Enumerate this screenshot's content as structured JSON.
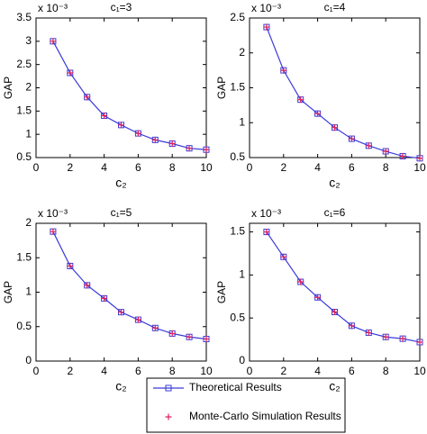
{
  "chart_data": [
    {
      "type": "line",
      "title": "c₁=3",
      "ylabel": "GAP",
      "xlabel": "c₂",
      "y_multiplier": "x 10⁻³",
      "x": [
        1,
        2,
        3,
        4,
        5,
        6,
        7,
        8,
        9,
        10
      ],
      "xlim": [
        0,
        10
      ],
      "xticks": [
        0,
        2,
        4,
        6,
        8,
        10
      ],
      "ylim": [
        0.5,
        3.5
      ],
      "yticks": [
        0.5,
        1,
        1.5,
        2,
        2.5,
        3,
        3.5
      ],
      "series": [
        {
          "name": "Theoretical Results",
          "color": "#3b3bd9",
          "marker": "square",
          "linestyle": "solid",
          "values": [
            3.0,
            2.32,
            1.8,
            1.4,
            1.2,
            1.02,
            0.88,
            0.8,
            0.7,
            0.67
          ]
        },
        {
          "name": "Monte-Carlo Simulation Results",
          "color": "#e0205a",
          "marker": "plus",
          "linestyle": "none",
          "values": [
            3.0,
            2.32,
            1.8,
            1.4,
            1.2,
            1.02,
            0.88,
            0.8,
            0.7,
            0.67
          ]
        }
      ]
    },
    {
      "type": "line",
      "title": "c₁=4",
      "ylabel": "GAP",
      "xlabel": "c₂",
      "y_multiplier": "x 10⁻³",
      "x": [
        1,
        2,
        3,
        4,
        5,
        6,
        7,
        8,
        9,
        10
      ],
      "xlim": [
        0,
        10
      ],
      "xticks": [
        0,
        2,
        4,
        6,
        8,
        10
      ],
      "ylim": [
        0.5,
        2.5
      ],
      "yticks": [
        0.5,
        1,
        1.5,
        2,
        2.5
      ],
      "series": [
        {
          "color": "#3b3bd9",
          "marker": "square",
          "linestyle": "solid",
          "values": [
            2.37,
            1.75,
            1.33,
            1.13,
            0.93,
            0.77,
            0.67,
            0.59,
            0.52,
            0.49
          ]
        },
        {
          "color": "#e0205a",
          "marker": "plus",
          "linestyle": "none",
          "values": [
            2.37,
            1.75,
            1.33,
            1.13,
            0.93,
            0.77,
            0.67,
            0.59,
            0.52,
            0.49
          ]
        }
      ]
    },
    {
      "type": "line",
      "title": "c₁=5",
      "ylabel": "GAP",
      "xlabel": "c₂",
      "y_multiplier": "x 10⁻³",
      "x": [
        1,
        2,
        3,
        4,
        5,
        6,
        7,
        8,
        9,
        10
      ],
      "xlim": [
        0,
        10
      ],
      "xticks": [
        0,
        2,
        4,
        6,
        8,
        10
      ],
      "ylim": [
        0,
        2
      ],
      "yticks": [
        0,
        0.5,
        1,
        1.5,
        2
      ],
      "series": [
        {
          "color": "#3b3bd9",
          "marker": "square",
          "linestyle": "solid",
          "values": [
            1.88,
            1.38,
            1.1,
            0.91,
            0.71,
            0.6,
            0.48,
            0.4,
            0.35,
            0.32
          ]
        },
        {
          "color": "#e0205a",
          "marker": "plus",
          "linestyle": "none",
          "values": [
            1.88,
            1.38,
            1.1,
            0.91,
            0.71,
            0.6,
            0.48,
            0.4,
            0.35,
            0.32
          ]
        }
      ]
    },
    {
      "type": "line",
      "title": "c₁=6",
      "ylabel": "GAP",
      "xlabel": "c₂",
      "y_multiplier": "x 10⁻³",
      "x": [
        1,
        2,
        3,
        4,
        5,
        6,
        7,
        8,
        9,
        10
      ],
      "xlim": [
        0,
        10
      ],
      "xticks": [
        0,
        2,
        4,
        6,
        8,
        10
      ],
      "ylim": [
        0,
        1.6
      ],
      "yticks": [
        0,
        0.5,
        1,
        1.5
      ],
      "series": [
        {
          "color": "#3b3bd9",
          "marker": "square",
          "linestyle": "solid",
          "values": [
            1.5,
            1.21,
            0.92,
            0.74,
            0.57,
            0.41,
            0.33,
            0.28,
            0.26,
            0.22
          ]
        },
        {
          "color": "#e0205a",
          "marker": "plus",
          "linestyle": "none",
          "values": [
            1.5,
            1.21,
            0.92,
            0.74,
            0.57,
            0.41,
            0.33,
            0.28,
            0.26,
            0.22
          ]
        }
      ]
    }
  ]
}
